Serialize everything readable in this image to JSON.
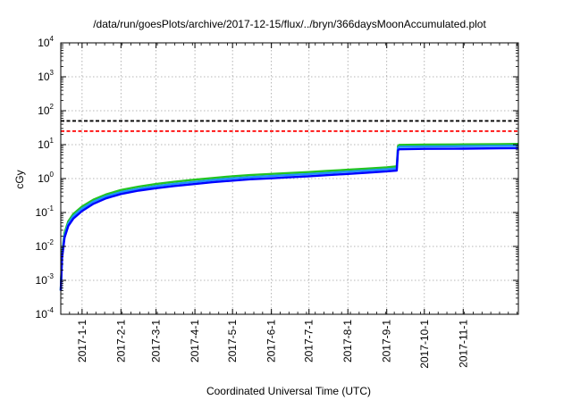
{
  "chart_data": {
    "type": "line",
    "title": "/data/run/goesPlots/archive/2017-12-15/flux/../bryn/366daysMoonAccumulated.plot",
    "xlabel": "Coordinated Universal Time (UTC)",
    "ylabel": "cGy",
    "yscale": "log",
    "ylim": [
      0.0001,
      10000
    ],
    "xlim": [
      "2016-12-15",
      "2017-12-15"
    ],
    "grid": true,
    "y_ticks": [
      {
        "value": 0.0001,
        "base": "10",
        "exp": "-4"
      },
      {
        "value": 0.001,
        "base": "10",
        "exp": "-3"
      },
      {
        "value": 0.01,
        "base": "10",
        "exp": "-2"
      },
      {
        "value": 0.1,
        "base": "10",
        "exp": "-1"
      },
      {
        "value": 1,
        "base": "10",
        "exp": "0"
      },
      {
        "value": 10,
        "base": "10",
        "exp": "1"
      },
      {
        "value": 100,
        "base": "10",
        "exp": "2"
      },
      {
        "value": 1000,
        "base": "10",
        "exp": "3"
      },
      {
        "value": 10000,
        "base": "10",
        "exp": "4"
      }
    ],
    "x_ticks": [
      {
        "date": "2017-01-01",
        "label": "2017-1-1"
      },
      {
        "date": "2017-02-01",
        "label": "2017-2-1"
      },
      {
        "date": "2017-03-01",
        "label": "2017-3-1"
      },
      {
        "date": "2017-04-01",
        "label": "2017-4-1"
      },
      {
        "date": "2017-05-01",
        "label": "2017-5-1"
      },
      {
        "date": "2017-06-01",
        "label": "2017-6-1"
      },
      {
        "date": "2017-07-01",
        "label": "2017-7-1"
      },
      {
        "date": "2017-08-01",
        "label": "2017-8-1"
      },
      {
        "date": "2017-09-01",
        "label": "2017-9-1"
      },
      {
        "date": "2017-10-01",
        "label": "2017-10-1"
      },
      {
        "date": "2017-11-01",
        "label": "2017-11-1"
      }
    ],
    "reference_lines": [
      {
        "value": 50,
        "color": "#000000",
        "style": "dashed"
      },
      {
        "value": 25,
        "color": "#ff0000",
        "style": "dashed"
      }
    ],
    "series": [
      {
        "color": "#22c422",
        "x": [
          "2016-12-15",
          "2016-12-16",
          "2016-12-18",
          "2016-12-21",
          "2016-12-25",
          "2017-01-01",
          "2017-01-10",
          "2017-01-20",
          "2017-02-01",
          "2017-02-15",
          "2017-03-01",
          "2017-03-15",
          "2017-04-01",
          "2017-04-15",
          "2017-05-01",
          "2017-05-15",
          "2017-06-01",
          "2017-06-15",
          "2017-07-01",
          "2017-07-15",
          "2017-08-01",
          "2017-08-15",
          "2017-09-01",
          "2017-09-09",
          "2017-09-10",
          "2017-09-11",
          "2017-10-01",
          "2017-11-01",
          "2017-12-01",
          "2017-12-15"
        ],
        "y": [
          0.0005,
          0.006,
          0.025,
          0.055,
          0.09,
          0.15,
          0.24,
          0.34,
          0.46,
          0.58,
          0.69,
          0.8,
          0.93,
          1.04,
          1.17,
          1.27,
          1.37,
          1.46,
          1.56,
          1.67,
          1.82,
          1.96,
          2.15,
          2.3,
          9.0,
          9.8,
          10.0,
          10.2,
          10.4,
          10.5
        ]
      },
      {
        "color": "#1e90ff",
        "x": [
          "2016-12-15",
          "2016-12-16",
          "2016-12-18",
          "2016-12-21",
          "2016-12-25",
          "2017-01-01",
          "2017-01-10",
          "2017-01-20",
          "2017-02-01",
          "2017-02-15",
          "2017-03-01",
          "2017-03-15",
          "2017-04-01",
          "2017-04-15",
          "2017-05-01",
          "2017-05-15",
          "2017-06-01",
          "2017-06-15",
          "2017-07-01",
          "2017-07-15",
          "2017-08-01",
          "2017-08-15",
          "2017-09-01",
          "2017-09-09",
          "2017-09-10",
          "2017-09-11",
          "2017-10-01",
          "2017-11-01",
          "2017-12-01",
          "2017-12-15"
        ],
        "y": [
          0.0005,
          0.005,
          0.021,
          0.047,
          0.078,
          0.13,
          0.21,
          0.3,
          0.4,
          0.5,
          0.6,
          0.69,
          0.8,
          0.9,
          1.01,
          1.1,
          1.19,
          1.27,
          1.36,
          1.46,
          1.59,
          1.71,
          1.88,
          2.0,
          8.0,
          8.6,
          8.8,
          9.0,
          9.2,
          9.3
        ]
      },
      {
        "color": "#0000ff",
        "x": [
          "2016-12-15",
          "2016-12-16",
          "2016-12-18",
          "2016-12-21",
          "2016-12-25",
          "2017-01-01",
          "2017-01-10",
          "2017-01-20",
          "2017-02-01",
          "2017-02-15",
          "2017-03-01",
          "2017-03-15",
          "2017-04-01",
          "2017-04-15",
          "2017-05-01",
          "2017-05-15",
          "2017-06-01",
          "2017-06-15",
          "2017-07-01",
          "2017-07-15",
          "2017-08-01",
          "2017-08-15",
          "2017-09-01",
          "2017-09-09",
          "2017-09-10",
          "2017-09-11",
          "2017-10-01",
          "2017-11-01",
          "2017-12-01",
          "2017-12-15"
        ],
        "y": [
          0.0005,
          0.0045,
          0.018,
          0.04,
          0.066,
          0.11,
          0.18,
          0.26,
          0.35,
          0.44,
          0.52,
          0.6,
          0.69,
          0.78,
          0.87,
          0.95,
          1.02,
          1.09,
          1.17,
          1.26,
          1.37,
          1.48,
          1.63,
          1.73,
          6.8,
          7.3,
          7.5,
          7.6,
          7.8,
          7.9
        ]
      }
    ]
  }
}
